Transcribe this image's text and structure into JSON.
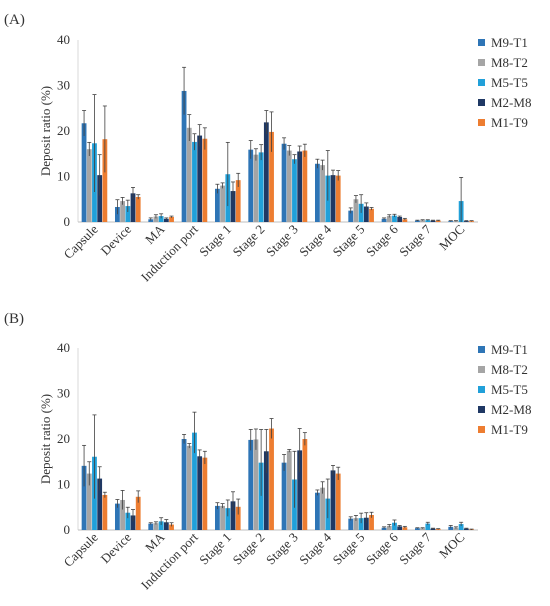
{
  "panels": [
    {
      "label": "(A)"
    },
    {
      "label": "(B)"
    }
  ],
  "chart_data": [
    {
      "type": "bar",
      "panel": "(A)",
      "ylabel": "Deposit ratio (%)",
      "ylim": [
        0,
        40
      ],
      "yticks": [
        0,
        10,
        20,
        30,
        40
      ],
      "grid": false,
      "legend_position": "right",
      "categories": [
        "Capsule",
        "Device",
        "MA",
        "Induction port",
        "Stage 1",
        "Stage 2",
        "Stage 3",
        "Stage 4",
        "Stage 5",
        "Stage 6",
        "Stage 7",
        "MOC"
      ],
      "series": [
        {
          "name": "M9-T1",
          "color": "#2e75b6",
          "values": [
            21.7,
            3.3,
            0.6,
            28.8,
            7.3,
            15.9,
            17.2,
            12.8,
            2.5,
            0.7,
            0.3,
            0.2
          ],
          "errors": [
            2.8,
            1.6,
            0.3,
            5.2,
            1.0,
            2.0,
            1.3,
            1.0,
            0.6,
            0.2,
            0.1,
            0.1
          ]
        },
        {
          "name": "M8-T2",
          "color": "#a5a5a5",
          "values": [
            16.0,
            4.6,
            1.2,
            20.7,
            8.0,
            14.8,
            15.7,
            12.5,
            5.0,
            1.3,
            0.4,
            0.2
          ],
          "errors": [
            1.5,
            0.8,
            0.4,
            2.9,
            0.6,
            1.3,
            1.1,
            1.1,
            0.8,
            0.3,
            0.1,
            0.1
          ]
        },
        {
          "name": "M5-T5",
          "color": "#21a0d9",
          "values": [
            17.3,
            3.5,
            1.3,
            17.6,
            10.5,
            15.3,
            13.8,
            10.2,
            4.0,
            1.4,
            0.4,
            4.6
          ],
          "errors": [
            10.7,
            1.3,
            0.5,
            1.8,
            7.0,
            1.7,
            1.0,
            5.5,
            2.0,
            0.3,
            0.1,
            5.2
          ]
        },
        {
          "name": "M2-M8",
          "color": "#1f3864",
          "values": [
            10.3,
            6.3,
            0.7,
            19.0,
            6.8,
            21.9,
            15.5,
            10.3,
            3.4,
            1.1,
            0.3,
            0.2
          ],
          "errors": [
            4.5,
            1.3,
            0.2,
            2.4,
            2.0,
            2.6,
            1.2,
            1.1,
            0.8,
            0.2,
            0.1,
            0.1
          ]
        },
        {
          "name": "M1-T9",
          "color": "#ed7d31",
          "values": [
            18.2,
            5.5,
            1.1,
            18.3,
            9.2,
            19.8,
            15.7,
            10.2,
            2.9,
            0.6,
            0.3,
            0.2
          ],
          "errors": [
            7.3,
            0.5,
            0.2,
            2.4,
            1.5,
            4.4,
            1.4,
            1.1,
            0.3,
            0.2,
            0.1,
            0.1
          ]
        }
      ]
    },
    {
      "type": "bar",
      "panel": "(B)",
      "ylabel": "Deposit ratio (%)",
      "ylim": [
        0,
        40
      ],
      "yticks": [
        0,
        10,
        20,
        30,
        40
      ],
      "grid": false,
      "legend_position": "right",
      "categories": [
        "Capsule",
        "Device",
        "MA",
        "Induction port",
        "Stage 1",
        "Stage 2",
        "Stage 3",
        "Stage 4",
        "Stage 5",
        "Stage 6",
        "Stage 7",
        "MOC"
      ],
      "series": [
        {
          "name": "M9-T1",
          "color": "#2e75b6",
          "values": [
            14.1,
            5.8,
            1.4,
            20.0,
            5.3,
            19.8,
            14.8,
            8.2,
            2.5,
            0.5,
            0.4,
            0.7
          ],
          "errors": [
            4.5,
            0.9,
            0.2,
            1.0,
            0.7,
            2.3,
            1.8,
            0.6,
            0.4,
            0.2,
            0.1,
            0.3
          ]
        },
        {
          "name": "M8-T2",
          "color": "#a5a5a5",
          "values": [
            12.4,
            6.6,
            1.5,
            18.5,
            5.3,
            19.9,
            17.4,
            9.3,
            2.6,
            0.9,
            0.4,
            0.5
          ],
          "errors": [
            2.6,
            2.1,
            0.3,
            0.5,
            0.5,
            2.3,
            0.3,
            1.3,
            0.6,
            0.3,
            0.1,
            0.2
          ]
        },
        {
          "name": "M5-T5",
          "color": "#21a0d9",
          "values": [
            16.1,
            3.8,
            1.9,
            21.4,
            4.8,
            14.8,
            11.1,
            6.9,
            2.6,
            1.6,
            1.4,
            1.3
          ],
          "errors": [
            9.2,
            1.2,
            0.8,
            4.5,
            1.8,
            7.3,
            6.2,
            4.3,
            1.1,
            0.6,
            0.3,
            0.4
          ]
        },
        {
          "name": "M2-M8",
          "color": "#1f3864",
          "values": [
            11.3,
            3.2,
            1.7,
            16.2,
            6.3,
            17.3,
            17.5,
            13.1,
            2.7,
            0.8,
            0.3,
            0.3
          ],
          "errors": [
            2.6,
            1.3,
            0.6,
            1.4,
            2.1,
            4.8,
            4.8,
            1.1,
            1.1,
            0.2,
            0.1,
            0.1
          ]
        },
        {
          "name": "M1-T9",
          "color": "#ed7d31",
          "values": [
            7.7,
            7.3,
            1.2,
            15.9,
            5.1,
            22.3,
            20.0,
            12.4,
            3.3,
            0.6,
            0.2,
            0.1
          ],
          "errors": [
            0.6,
            1.3,
            0.4,
            1.4,
            1.7,
            2.2,
            1.4,
            1.4,
            0.6,
            0.2,
            0.1,
            0.1
          ]
        }
      ]
    }
  ]
}
